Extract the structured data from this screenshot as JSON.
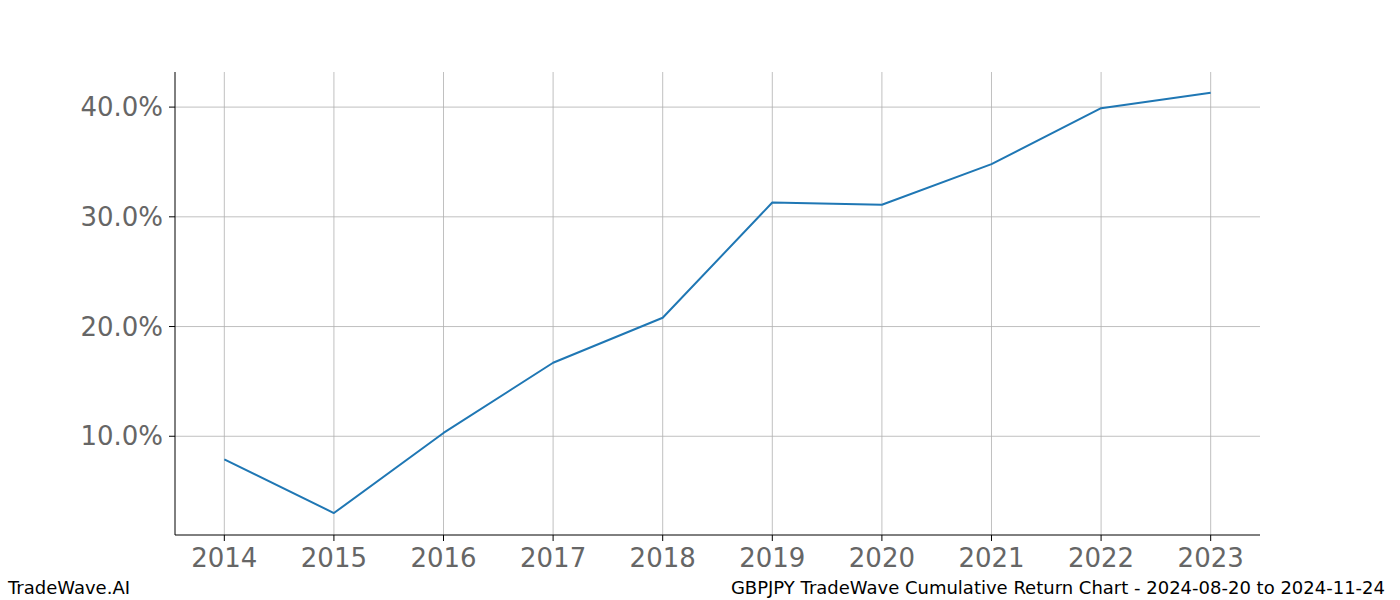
{
  "chart_data": {
    "type": "line",
    "title": "GBPJPY TradeWave Cumulative Return Chart - 2024-08-20 to 2024-11-24",
    "annotations": [
      "TradeWave.AI"
    ],
    "x": [
      2014,
      2015,
      2016,
      2017,
      2018,
      2019,
      2020,
      2021,
      2022,
      2023
    ],
    "series": [
      {
        "name": "GBPJPY",
        "color": "#1f77b4",
        "values": [
          7.9,
          3.0,
          10.3,
          16.7,
          20.8,
          31.3,
          31.1,
          34.8,
          39.9,
          41.3
        ]
      }
    ],
    "xlim": [
      2013.55,
      2023.45
    ],
    "xticks": [
      2014,
      2015,
      2016,
      2017,
      2018,
      2019,
      2020,
      2021,
      2022,
      2023
    ],
    "ylim": [
      1.0,
      43.2
    ],
    "yticks": [
      {
        "value": 10,
        "label": "10.0%"
      },
      {
        "value": 20,
        "label": "20.0%"
      },
      {
        "value": 30,
        "label": "30.0%"
      },
      {
        "value": 40,
        "label": "40.0%"
      }
    ],
    "grid": true
  }
}
